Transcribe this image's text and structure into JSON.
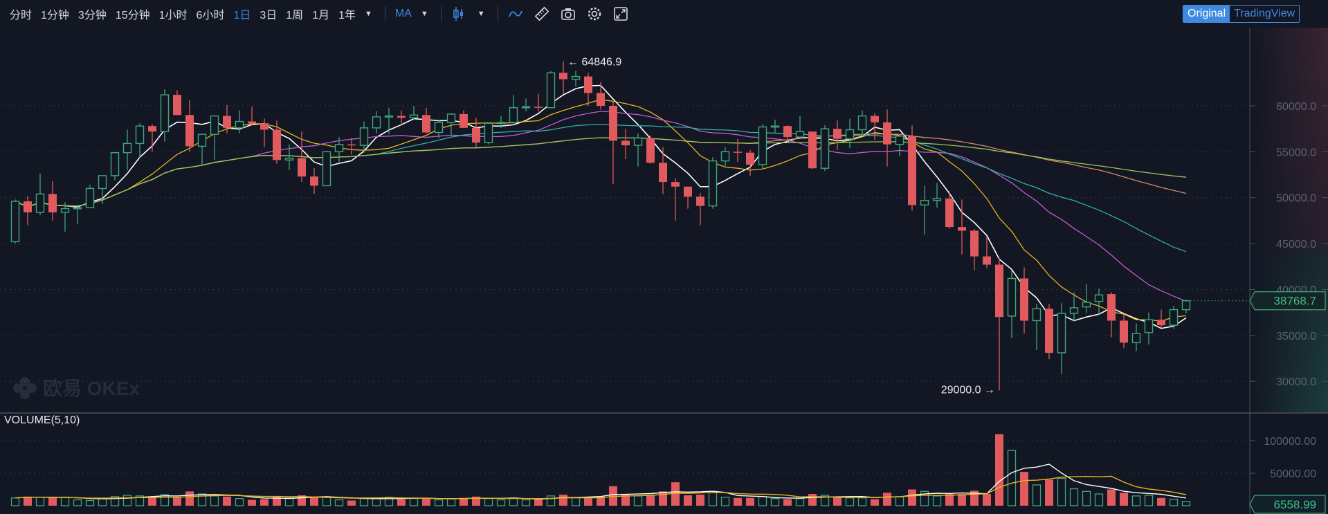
{
  "toolbar": {
    "intervals": [
      "分时",
      "1分钟",
      "3分钟",
      "15分钟",
      "1小时",
      "6小时",
      "1日",
      "3日",
      "1周",
      "1月",
      "1年"
    ],
    "active_interval": "1日",
    "indicator": "MA",
    "icons": [
      "dropdown-arrow",
      "candlestick-icon",
      "line-draw-icon",
      "ruler-icon",
      "camera-icon",
      "gear-icon",
      "fullscreen-icon"
    ]
  },
  "mode_toggle": {
    "original": "Original",
    "tradingview": "TradingView",
    "active": "Original"
  },
  "watermark": "欧易 OKEx",
  "volume_label": "VOLUME(5,10)",
  "colors": {
    "up": "#3fa77b",
    "down": "#e15a5e",
    "ma5": "#ffffff",
    "ma10": "#e7b51c",
    "ma20": "#c65bd7",
    "ma30": "#2fb3a3",
    "ma60": "#d98a66",
    "ma120": "#9cc55a",
    "accent": "#3d8ae0"
  },
  "chart_data": {
    "type": "candlestick",
    "price_axis": {
      "ticks": [
        "60000.0",
        "55000.0",
        "50000.0",
        "45000.0",
        "40000.0",
        "35000.0",
        "30000.0"
      ],
      "range": [
        27500,
        67000
      ]
    },
    "volume_axis": {
      "ticks": [
        "100000.00",
        "50000.00"
      ]
    },
    "max_label": "64846.9",
    "min_label": "29000.0",
    "last_price": "38768.7",
    "last_volume": "6558.99",
    "ma_periods": [
      5,
      10,
      20,
      30,
      60,
      120
    ],
    "volume_ma_periods": [
      5,
      10
    ],
    "ohlc": [
      [
        45200,
        49800,
        45000,
        49600
      ],
      [
        49600,
        50200,
        47000,
        48400
      ],
      [
        48400,
        52600,
        48100,
        50400
      ],
      [
        50400,
        51800,
        47500,
        48400
      ],
      [
        48400,
        49500,
        46300,
        48800
      ],
      [
        48800,
        49200,
        47100,
        48900
      ],
      [
        48900,
        51400,
        48900,
        51000
      ],
      [
        51000,
        52400,
        49300,
        52400
      ],
      [
        52400,
        54900,
        51900,
        54900
      ],
      [
        54900,
        57400,
        53000,
        55900
      ],
      [
        55900,
        58100,
        54300,
        57800
      ],
      [
        57800,
        58000,
        55000,
        57200
      ],
      [
        57200,
        61800,
        56100,
        61200
      ],
      [
        61200,
        61700,
        59000,
        59000
      ],
      [
        59000,
        60600,
        55000,
        55600
      ],
      [
        55600,
        56900,
        53600,
        56900
      ],
      [
        56900,
        58900,
        54100,
        58900
      ],
      [
        58900,
        60100,
        57000,
        57600
      ],
      [
        57600,
        59500,
        57000,
        58300
      ],
      [
        58300,
        59900,
        57900,
        58100
      ],
      [
        58100,
        58600,
        55500,
        57400
      ],
      [
        57400,
        58400,
        53700,
        54100
      ],
      [
        54100,
        55800,
        53000,
        54300
      ],
      [
        54300,
        57200,
        51700,
        52300
      ],
      [
        52300,
        53200,
        50400,
        51300
      ],
      [
        51300,
        55100,
        51300,
        55000
      ],
      [
        55000,
        56600,
        53900,
        55800
      ],
      [
        55800,
        56500,
        54700,
        55700
      ],
      [
        55700,
        58300,
        54900,
        57600
      ],
      [
        57600,
        59400,
        57000,
        58800
      ],
      [
        58800,
        59800,
        56900,
        58900
      ],
      [
        58900,
        59500,
        57900,
        58700
      ],
      [
        58700,
        60000,
        58500,
        59000
      ],
      [
        59000,
        59800,
        57000,
        57100
      ],
      [
        57100,
        58500,
        56500,
        58200
      ],
      [
        58200,
        59200,
        56900,
        59100
      ],
      [
        59100,
        59500,
        57700,
        57600
      ],
      [
        57600,
        58700,
        55500,
        56000
      ],
      [
        56000,
        58200,
        55800,
        58100
      ],
      [
        58100,
        58900,
        57600,
        58200
      ],
      [
        58200,
        61200,
        57900,
        59800
      ],
      [
        59800,
        60800,
        59400,
        59900
      ],
      [
        59900,
        61300,
        59400,
        59800
      ],
      [
        59800,
        63800,
        59800,
        63600
      ],
      [
        63600,
        64846.9,
        61300,
        62900
      ],
      [
        62900,
        63800,
        62100,
        63200
      ],
      [
        63200,
        63600,
        60000,
        61400
      ],
      [
        61400,
        62600,
        59600,
        60000
      ],
      [
        60000,
        60500,
        51500,
        56200
      ],
      [
        56200,
        57500,
        54200,
        55700
      ],
      [
        55700,
        57000,
        53400,
        56500
      ],
      [
        56500,
        56800,
        53700,
        53800
      ],
      [
        53800,
        55500,
        50400,
        51700
      ],
      [
        51700,
        52100,
        47500,
        51200
      ],
      [
        51200,
        51200,
        48800,
        50100
      ],
      [
        50100,
        50500,
        47000,
        49100
      ],
      [
        49100,
        54400,
        48800,
        54000
      ],
      [
        54000,
        55500,
        53300,
        55000
      ],
      [
        55000,
        56400,
        53900,
        54900
      ],
      [
        54900,
        55200,
        52400,
        53600
      ],
      [
        53600,
        58000,
        53100,
        57700
      ],
      [
        57700,
        58500,
        57100,
        57800
      ],
      [
        57800,
        57900,
        56000,
        56600
      ],
      [
        56600,
        58900,
        56500,
        57200
      ],
      [
        57200,
        57200,
        53100,
        53200
      ],
      [
        53200,
        57900,
        52900,
        57500
      ],
      [
        57500,
        58400,
        55200,
        56400
      ],
      [
        56400,
        58600,
        55400,
        57400
      ],
      [
        57400,
        59500,
        56900,
        58900
      ],
      [
        58900,
        59200,
        56300,
        58200
      ],
      [
        58200,
        59600,
        53400,
        55800
      ],
      [
        55800,
        56900,
        54500,
        56700
      ],
      [
        56700,
        57900,
        48600,
        49200
      ],
      [
        49200,
        51300,
        46000,
        49700
      ],
      [
        49700,
        51600,
        48900,
        49900
      ],
      [
        49900,
        50700,
        46600,
        46800
      ],
      [
        46800,
        49800,
        43800,
        46400
      ],
      [
        46400,
        46600,
        42100,
        43600
      ],
      [
        43600,
        45800,
        42300,
        42700
      ],
      [
        42700,
        43400,
        29000,
        37000
      ],
      [
        37100,
        42100,
        34700,
        41200
      ],
      [
        41200,
        42400,
        35200,
        36600
      ],
      [
        36600,
        38400,
        33400,
        37900
      ],
      [
        37900,
        38400,
        32400,
        33100
      ],
      [
        33100,
        38500,
        30800,
        37400
      ],
      [
        37400,
        39700,
        36500,
        38000
      ],
      [
        38100,
        40600,
        37400,
        38600
      ],
      [
        38700,
        40100,
        37200,
        39400
      ],
      [
        39500,
        39700,
        34800,
        36600
      ],
      [
        36600,
        37300,
        33600,
        34200
      ],
      [
        34200,
        36300,
        33300,
        35200
      ],
      [
        35300,
        37500,
        34000,
        36700
      ],
      [
        36700,
        37800,
        35800,
        36100
      ],
      [
        36100,
        38200,
        35700,
        37800
      ],
      [
        37800,
        38900,
        37400,
        38768.7
      ]
    ],
    "volume": [
      12000,
      14000,
      13000,
      12500,
      13000,
      9000,
      8000,
      11000,
      14000,
      16000,
      15000,
      14000,
      17000,
      13000,
      22000,
      18000,
      15000,
      14000,
      11000,
      9000,
      10000,
      14000,
      12000,
      16000,
      14000,
      13000,
      9000,
      8000,
      12000,
      12000,
      13000,
      10000,
      11000,
      12000,
      9000,
      11000,
      12000,
      14000,
      11000,
      9000,
      12000,
      9000,
      10000,
      15000,
      17000,
      12000,
      13000,
      14000,
      30000,
      18000,
      15000,
      16000,
      22000,
      36000,
      16000,
      17000,
      20000,
      13000,
      12000,
      12000,
      14000,
      11000,
      10000,
      11000,
      18000,
      16000,
      13000,
      12000,
      12000,
      10000,
      20000,
      14000,
      25000,
      22000,
      15000,
      18000,
      18000,
      23000,
      18000,
      110000,
      85000,
      52000,
      32000,
      40000,
      42000,
      26000,
      22000,
      18000,
      25000,
      20000,
      15000,
      16000,
      12000,
      10000,
      6558.99
    ]
  }
}
